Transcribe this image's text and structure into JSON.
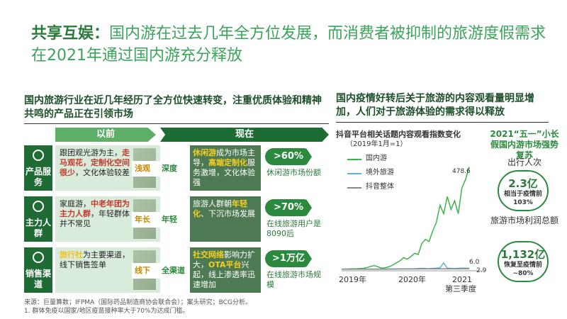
{
  "title": {
    "prefix": "共享互娱：",
    "text": "国内游在过去几年全方位发展，而消费者被抑制的旅游度假需求在2021年通过国内游充分释放"
  },
  "left": {
    "subtitle": "国内旅游行业在近几年经历了全方位快速转变，注重优质体验和精神共鸣的产品正在引领市场",
    "header_before": "以前",
    "header_now": "现在",
    "rows": [
      {
        "label": "产品服务",
        "before_parts": [
          "跟团观光游为主，",
          "走马观花，定制化空间很少",
          "，文化体验较差"
        ],
        "shift_from": "浅观",
        "shift_to": "深度",
        "now_parts": [
          "休闲游",
          "成为市场主导，",
          "高端定制化",
          "服务激增，文化体验强"
        ],
        "metric": ">60%",
        "metric_note": "休闲游市场份额"
      },
      {
        "label": "主力人群",
        "before_parts": [
          "家庭游，",
          "中老年团为主力人群",
          "，年轻群体并不常见"
        ],
        "shift_from": "年长",
        "shift_to": "年轻",
        "now_parts": [
          "旅游人群朝",
          "年轻化",
          "、下沉市场发展"
        ],
        "metric": ">70%",
        "metric_note": "在线旅游用户是8090后"
      },
      {
        "label": "销售渠道",
        "before_parts": [
          "旅行社",
          "为主要渠道，线下销售签单"
        ],
        "shift_from": "线下",
        "shift_to": "全渠道",
        "now_parts": [
          "社交网络",
          "影响力扩大，",
          "OTA平台",
          "兴起，线上渗透率迅速增加"
        ],
        "metric": ">1万亿",
        "metric_note": "在线旅游市场规模"
      }
    ],
    "source": "来源：巨量算数；IFPMA（国际药品制造商协会联合会）；案头研究；BCG分析。",
    "footnote": "1. 群体免疫以国家/地区疫苗接种率大于70%为达成门槛。"
  },
  "right": {
    "subtitle": "国内疫情好转后关于旅游的内容观看量明显增加，人们对于旅游体验的需求得以释放",
    "side_title": "2021“五一”小长假国内游市场强势复苏",
    "side_label_1": "出行人次",
    "circle_1_big": "2.3亿",
    "circle_1_small": "相当于疫情前103%",
    "side_label_2": "旅游市场利润总额",
    "circle_2_big": "1,132亿",
    "circle_2_small": "恢复至疫情前~80%"
  },
  "chart_data": {
    "type": "line",
    "title": "抖音平台相关话题内容观看指数变化",
    "note": "（2019年1月=1）",
    "x_tick_labels": [
      "2019年",
      "2020年",
      "2021",
      "第三季度"
    ],
    "series": [
      {
        "name": "国内游",
        "color": "#3cb44b",
        "values": [
          1,
          1.5,
          2,
          3,
          2.5,
          4,
          5,
          9,
          14,
          18,
          12,
          6,
          8,
          12,
          20,
          30,
          40,
          55,
          48,
          60,
          75,
          70,
          120,
          140,
          130,
          180,
          220,
          300,
          260,
          340,
          280,
          320,
          260,
          380,
          420,
          478.6
        ]
      },
      {
        "name": "境外旅游",
        "color": "#5ab4d6",
        "values": [
          1,
          1,
          1.2,
          1.1,
          1,
          1.3,
          1.5,
          1.4,
          1.2,
          1,
          0.9,
          0.8,
          1,
          1.2,
          1.5,
          2,
          2.5,
          3,
          2.5,
          2,
          3,
          4,
          5,
          4,
          3,
          5,
          6,
          8,
          30,
          6,
          5,
          4,
          5,
          6,
          5.5,
          6.0
        ]
      },
      {
        "name": "抖音整体",
        "color": "#888888",
        "values": [
          1,
          1,
          1.1,
          1.1,
          1.2,
          1.2,
          1.3,
          1.3,
          1.4,
          1.4,
          1.5,
          1.5,
          1.6,
          1.6,
          1.7,
          1.7,
          1.8,
          1.8,
          1.9,
          1.9,
          2.0,
          2.1,
          2.2,
          2.3,
          2.4,
          2.5,
          2.5,
          2.6,
          2.7,
          2.7,
          2.8,
          2.8,
          2.8,
          2.9,
          2.9,
          2.9
        ]
      }
    ],
    "end_labels": [
      "478.6",
      "6.0",
      "2.9"
    ]
  }
}
